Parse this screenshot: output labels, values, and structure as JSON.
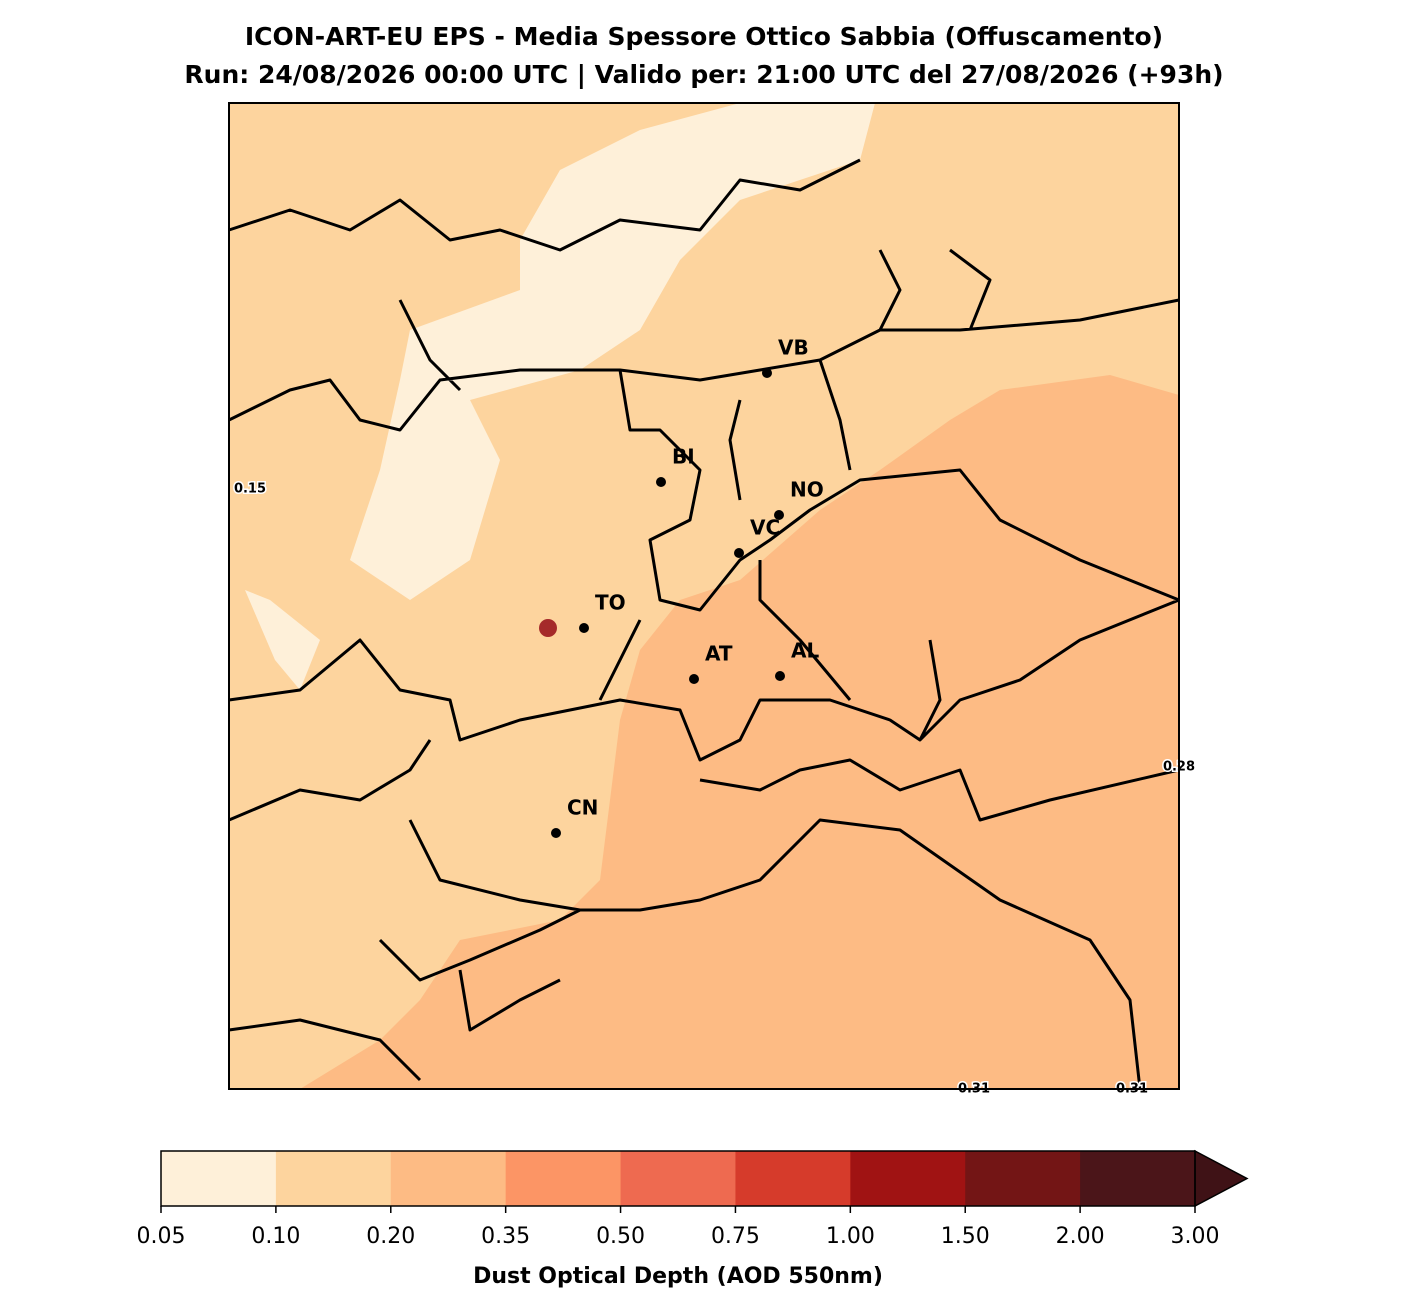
{
  "title": [
    "ICON-ART-EU EPS - Media Spessore Ottico Sabbia (Offuscamento)",
    "Run: 24/08/2026 00:00 UTC | Valido per: 21:00 UTC del 27/08/2026 (+93h)"
  ],
  "cities": [
    "VB",
    "BI",
    "NO",
    "VC",
    "TO",
    "AT",
    "AL",
    "CN"
  ],
  "contour_labels": [
    0.15,
    0.28,
    0.31,
    0.31
  ],
  "colorbar": {
    "label": "Dust Optical Depth (AOD 550nm)",
    "levels": [
      0.05,
      {
        "value": 0.1,
        "label": "0.10"
      },
      {
        "value": 0.2,
        "label": "0.20"
      },
      0.35,
      {
        "value": 0.5,
        "label": "0.50"
      },
      0.75,
      {
        "value": 1,
        "label": "1.00"
      },
      {
        "value": 1.5,
        "label": "1.50"
      },
      {
        "value": 2,
        "label": "2.00"
      },
      {
        "value": 3,
        "label": "3.00"
      }
    ],
    "colors": [
      "#fef0d9",
      "#fdd49e",
      "#fdbb84",
      "#fc9565",
      "#ee6a50",
      "#d63b2b",
      "#a01313",
      "#731515",
      "#4b1519"
    ],
    "extend_color": "#3f1216"
  }
}
